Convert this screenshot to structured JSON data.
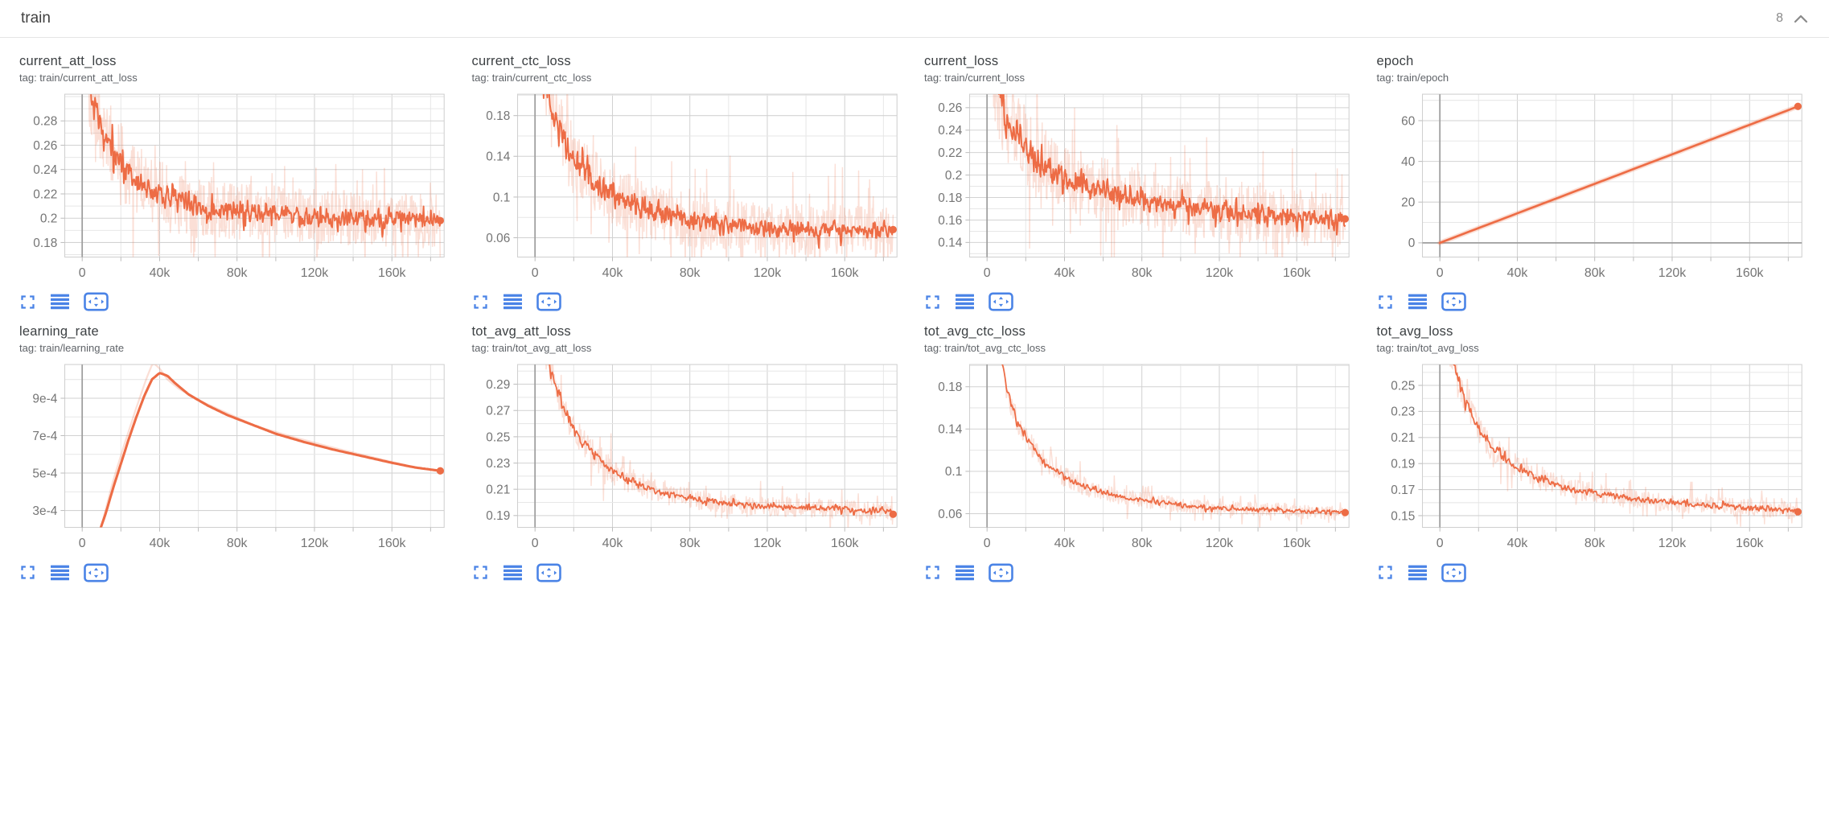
{
  "header": {
    "title": "train",
    "count": "8"
  },
  "colors": {
    "accent": "#ed6c45",
    "accent_light": "rgba(237,108,69,0.22)",
    "icon_blue": "#4a83e6",
    "tick_label": "#757575",
    "zero_line": "#9e9e9e"
  },
  "icons": [
    "fullscreen-icon",
    "log-scale-icon",
    "fit-domain-icon",
    "chevron-up-icon"
  ],
  "axis": {
    "x_ticks": [
      [
        0,
        "0"
      ],
      [
        40000,
        "40k"
      ],
      [
        80000,
        "80k"
      ],
      [
        120000,
        "120k"
      ],
      [
        160000,
        "160k"
      ]
    ],
    "x_grid_step": 20000,
    "xlim": [
      -9000,
      187000
    ]
  },
  "chart_data": [
    {
      "type": "line",
      "title": "current_att_loss",
      "tag": "tag: train/current_att_loss",
      "ylim": [
        0.168,
        0.302
      ],
      "y_minor": 0.01,
      "y_ticks": [
        [
          0.18,
          "0.18"
        ],
        [
          0.2,
          "0.2"
        ],
        [
          0.22,
          "0.22"
        ],
        [
          0.24,
          "0.24"
        ],
        [
          0.26,
          "0.26"
        ],
        [
          0.28,
          "0.28"
        ]
      ],
      "domain": [
        1500,
        185000
      ],
      "samples": 680,
      "line_width": 1.9,
      "trend": [
        [
          1500,
          0.345
        ],
        [
          4000,
          0.31
        ],
        [
          6000,
          0.295
        ],
        [
          9000,
          0.278
        ],
        [
          12000,
          0.268
        ],
        [
          16000,
          0.258
        ],
        [
          20000,
          0.247
        ],
        [
          25000,
          0.237
        ],
        [
          30000,
          0.229
        ],
        [
          35000,
          0.224
        ],
        [
          40000,
          0.22
        ],
        [
          50000,
          0.214
        ],
        [
          60000,
          0.21
        ],
        [
          80000,
          0.206
        ],
        [
          100000,
          0.203
        ],
        [
          120000,
          0.201
        ],
        [
          140000,
          0.2
        ],
        [
          160000,
          0.199
        ],
        [
          185000,
          0.197
        ]
      ],
      "noise": {
        "amp": [
          [
            1500,
            0.013
          ],
          [
            30000,
            0.01
          ],
          [
            80000,
            0.008
          ],
          [
            185000,
            0.0075
          ]
        ],
        "raw_mult": 3.0
      },
      "end_dot": [
        185000,
        0.198
      ]
    },
    {
      "type": "line",
      "title": "current_ctc_loss",
      "tag": "tag: train/current_ctc_loss",
      "ylim": [
        0.041,
        0.201
      ],
      "y_minor": 0.02,
      "y_ticks": [
        [
          0.06,
          "0.06"
        ],
        [
          0.1,
          "0.1"
        ],
        [
          0.14,
          "0.14"
        ],
        [
          0.18,
          "0.18"
        ]
      ],
      "domain": [
        1500,
        185000
      ],
      "samples": 680,
      "line_width": 1.9,
      "trend": [
        [
          1500,
          0.27
        ],
        [
          4000,
          0.225
        ],
        [
          6000,
          0.205
        ],
        [
          9000,
          0.185
        ],
        [
          12000,
          0.168
        ],
        [
          16000,
          0.152
        ],
        [
          20000,
          0.14
        ],
        [
          25000,
          0.127
        ],
        [
          30000,
          0.117
        ],
        [
          35000,
          0.109
        ],
        [
          40000,
          0.102
        ],
        [
          50000,
          0.092
        ],
        [
          60000,
          0.085
        ],
        [
          80000,
          0.077
        ],
        [
          100000,
          0.072
        ],
        [
          120000,
          0.069
        ],
        [
          140000,
          0.068
        ],
        [
          160000,
          0.067
        ],
        [
          185000,
          0.066
        ]
      ],
      "noise": {
        "amp": [
          [
            1500,
            0.015
          ],
          [
            30000,
            0.011
          ],
          [
            80000,
            0.009
          ],
          [
            185000,
            0.008
          ]
        ],
        "raw_mult": 3.0
      },
      "end_dot": [
        185000,
        0.068
      ]
    },
    {
      "type": "line",
      "title": "current_loss",
      "tag": "tag: train/current_loss",
      "ylim": [
        0.127,
        0.272
      ],
      "y_minor": 0.01,
      "y_ticks": [
        [
          0.14,
          "0.14"
        ],
        [
          0.16,
          "0.16"
        ],
        [
          0.18,
          "0.18"
        ],
        [
          0.2,
          "0.2"
        ],
        [
          0.22,
          "0.22"
        ],
        [
          0.24,
          "0.24"
        ],
        [
          0.26,
          "0.26"
        ]
      ],
      "domain": [
        1500,
        185000
      ],
      "samples": 680,
      "line_width": 1.9,
      "trend": [
        [
          1500,
          0.315
        ],
        [
          4000,
          0.285
        ],
        [
          6000,
          0.272
        ],
        [
          9000,
          0.256
        ],
        [
          12000,
          0.246
        ],
        [
          16000,
          0.236
        ],
        [
          20000,
          0.227
        ],
        [
          25000,
          0.217
        ],
        [
          30000,
          0.21
        ],
        [
          35000,
          0.204
        ],
        [
          40000,
          0.199
        ],
        [
          50000,
          0.192
        ],
        [
          60000,
          0.186
        ],
        [
          80000,
          0.178
        ],
        [
          100000,
          0.172
        ],
        [
          120000,
          0.168
        ],
        [
          140000,
          0.164
        ],
        [
          160000,
          0.162
        ],
        [
          185000,
          0.16
        ]
      ],
      "noise": {
        "amp": [
          [
            1500,
            0.014
          ],
          [
            30000,
            0.011
          ],
          [
            80000,
            0.009
          ],
          [
            185000,
            0.008
          ]
        ],
        "raw_mult": 3.0
      },
      "end_dot": [
        185000,
        0.161
      ]
    },
    {
      "type": "line",
      "title": "epoch",
      "tag": "tag: train/epoch",
      "ylim": [
        -7,
        73
      ],
      "y_minor": 10,
      "y_ticks": [
        [
          0,
          "0"
        ],
        [
          20,
          "20"
        ],
        [
          40,
          "40"
        ],
        [
          60,
          "60"
        ]
      ],
      "domain": [
        0,
        185000
      ],
      "samples": 4,
      "line_width": 2.6,
      "halo": true,
      "halo_width": 6,
      "trend": [
        [
          0,
          0
        ],
        [
          185000,
          67
        ]
      ],
      "end_dot": [
        185000,
        67
      ]
    },
    {
      "type": "line",
      "title": "learning_rate",
      "tag": "tag: train/learning_rate",
      "ylim": [
        0.00021,
        0.00108
      ],
      "y_minor": 0.0001,
      "y_ticks": [
        [
          0.0003,
          "3e-4"
        ],
        [
          0.0005,
          "5e-4"
        ],
        [
          0.0007,
          "7e-4"
        ],
        [
          0.0009,
          "9e-4"
        ]
      ],
      "domain": [
        3000,
        185000
      ],
      "samples": 220,
      "line_width": 3,
      "raw_width": 2.2,
      "trend": [
        [
          3000,
          5e-05
        ],
        [
          8000,
          0.00016
        ],
        [
          12000,
          0.00028
        ],
        [
          16000,
          0.00042
        ],
        [
          20000,
          0.00055
        ],
        [
          24000,
          0.00068
        ],
        [
          28000,
          0.0008
        ],
        [
          32000,
          0.00091
        ],
        [
          36000,
          0.001
        ],
        [
          40000,
          0.001035
        ],
        [
          44000,
          0.00102
        ],
        [
          48000,
          0.00098
        ],
        [
          55000,
          0.00092
        ],
        [
          65000,
          0.00086
        ],
        [
          75000,
          0.00081
        ],
        [
          85000,
          0.00077
        ],
        [
          100000,
          0.00071
        ],
        [
          115000,
          0.000665
        ],
        [
          130000,
          0.000625
        ],
        [
          145000,
          0.00059
        ],
        [
          160000,
          0.000555
        ],
        [
          172000,
          0.00053
        ],
        [
          185000,
          0.000512
        ]
      ],
      "raw_trend": [
        [
          3000,
          2e-05
        ],
        [
          10000,
          0.00022
        ],
        [
          16000,
          0.00046
        ],
        [
          22000,
          0.00066
        ],
        [
          28000,
          0.00085
        ],
        [
          33000,
          0.001
        ],
        [
          36500,
          0.00109
        ],
        [
          40000,
          0.00106
        ],
        [
          44000,
          0.001
        ],
        [
          50000,
          0.00095
        ],
        [
          60000,
          0.00089
        ],
        [
          75000,
          0.00082
        ],
        [
          90000,
          0.00075
        ],
        [
          110000,
          0.00069
        ],
        [
          130000,
          0.000635
        ],
        [
          150000,
          0.000585
        ],
        [
          170000,
          0.000535
        ],
        [
          185000,
          0.00051
        ]
      ],
      "end_dot": [
        185000,
        0.000512
      ]
    },
    {
      "type": "line",
      "title": "tot_avg_att_loss",
      "tag": "tag: train/tot_avg_att_loss",
      "ylim": [
        0.181,
        0.305
      ],
      "y_minor": 0.01,
      "y_ticks": [
        [
          0.19,
          "0.19"
        ],
        [
          0.21,
          "0.21"
        ],
        [
          0.23,
          "0.23"
        ],
        [
          0.25,
          "0.25"
        ],
        [
          0.27,
          "0.27"
        ],
        [
          0.29,
          "0.29"
        ]
      ],
      "domain": [
        1500,
        185000
      ],
      "samples": 520,
      "line_width": 1.7,
      "trend": [
        [
          1500,
          0.345
        ],
        [
          4000,
          0.325
        ],
        [
          6000,
          0.312
        ],
        [
          8000,
          0.301
        ],
        [
          10000,
          0.291
        ],
        [
          12000,
          0.282
        ],
        [
          15000,
          0.27
        ],
        [
          18000,
          0.261
        ],
        [
          20000,
          0.255
        ],
        [
          25000,
          0.245
        ],
        [
          30000,
          0.237
        ],
        [
          35000,
          0.23
        ],
        [
          40000,
          0.224
        ],
        [
          50000,
          0.216
        ],
        [
          60000,
          0.21
        ],
        [
          70000,
          0.206
        ],
        [
          80000,
          0.203
        ],
        [
          100000,
          0.199
        ],
        [
          120000,
          0.197
        ],
        [
          140000,
          0.196
        ],
        [
          160000,
          0.195
        ],
        [
          185000,
          0.193
        ]
      ],
      "noise": {
        "amp": [
          [
            1500,
            0.004
          ],
          [
            30000,
            0.0035
          ],
          [
            80000,
            0.0025
          ],
          [
            185000,
            0.0022
          ]
        ],
        "raw_mult": 3.2
      },
      "end_dot": [
        185000,
        0.191
      ]
    },
    {
      "type": "line",
      "title": "tot_avg_ctc_loss",
      "tag": "tag: train/tot_avg_ctc_loss",
      "ylim": [
        0.047,
        0.201
      ],
      "y_minor": 0.02,
      "y_ticks": [
        [
          0.06,
          "0.06"
        ],
        [
          0.1,
          "0.1"
        ],
        [
          0.14,
          "0.14"
        ],
        [
          0.18,
          "0.18"
        ]
      ],
      "domain": [
        1500,
        185000
      ],
      "samples": 520,
      "line_width": 1.7,
      "trend": [
        [
          1500,
          0.29
        ],
        [
          4000,
          0.245
        ],
        [
          6000,
          0.22
        ],
        [
          8000,
          0.198
        ],
        [
          10000,
          0.18
        ],
        [
          12000,
          0.167
        ],
        [
          15000,
          0.15
        ],
        [
          18000,
          0.139
        ],
        [
          20000,
          0.132
        ],
        [
          25000,
          0.119
        ],
        [
          30000,
          0.109
        ],
        [
          35000,
          0.101
        ],
        [
          40000,
          0.095
        ],
        [
          50000,
          0.086
        ],
        [
          60000,
          0.08
        ],
        [
          70000,
          0.076
        ],
        [
          80000,
          0.073
        ],
        [
          100000,
          0.068
        ],
        [
          120000,
          0.065
        ],
        [
          140000,
          0.064
        ],
        [
          160000,
          0.062
        ],
        [
          185000,
          0.061
        ]
      ],
      "noise": {
        "amp": [
          [
            1500,
            0.004
          ],
          [
            30000,
            0.0032
          ],
          [
            80000,
            0.0024
          ],
          [
            185000,
            0.0022
          ]
        ],
        "raw_mult": 3.2
      },
      "end_dot": [
        185000,
        0.061
      ]
    },
    {
      "type": "line",
      "title": "tot_avg_loss",
      "tag": "tag: train/tot_avg_loss",
      "ylim": [
        0.141,
        0.266
      ],
      "y_minor": 0.01,
      "y_ticks": [
        [
          0.15,
          "0.15"
        ],
        [
          0.17,
          "0.17"
        ],
        [
          0.19,
          "0.19"
        ],
        [
          0.21,
          "0.21"
        ],
        [
          0.23,
          "0.23"
        ],
        [
          0.25,
          "0.25"
        ]
      ],
      "domain": [
        1500,
        185000
      ],
      "samples": 520,
      "line_width": 1.7,
      "trend": [
        [
          1500,
          0.305
        ],
        [
          4000,
          0.285
        ],
        [
          6000,
          0.272
        ],
        [
          8000,
          0.261
        ],
        [
          10000,
          0.252
        ],
        [
          12000,
          0.243
        ],
        [
          15000,
          0.232
        ],
        [
          18000,
          0.223
        ],
        [
          20000,
          0.217
        ],
        [
          25000,
          0.206
        ],
        [
          30000,
          0.198
        ],
        [
          35000,
          0.192
        ],
        [
          40000,
          0.187
        ],
        [
          50000,
          0.179
        ],
        [
          60000,
          0.174
        ],
        [
          70000,
          0.17
        ],
        [
          80000,
          0.167
        ],
        [
          100000,
          0.163
        ],
        [
          120000,
          0.16
        ],
        [
          140000,
          0.158
        ],
        [
          160000,
          0.156
        ],
        [
          185000,
          0.154
        ]
      ],
      "noise": {
        "amp": [
          [
            1500,
            0.004
          ],
          [
            30000,
            0.0032
          ],
          [
            80000,
            0.0025
          ],
          [
            185000,
            0.0022
          ]
        ],
        "raw_mult": 3.2
      },
      "end_dot": [
        185000,
        0.153
      ]
    }
  ]
}
